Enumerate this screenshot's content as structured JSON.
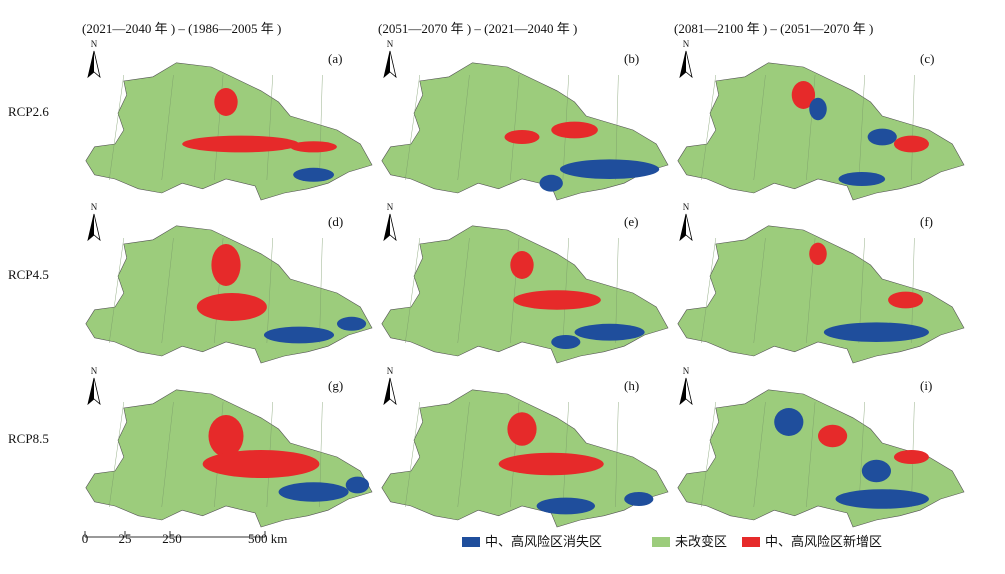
{
  "column_titles": [
    "(2021—2040 年 ) – (1986—2005 年 )",
    "(2051—2070 年 ) – (2021—2040 年 )",
    "(2081—2100 年 ) – (2051—2070 年 )"
  ],
  "row_labels": [
    "RCP2.6",
    "RCP4.5",
    "RCP8.5"
  ],
  "panels": [
    {
      "label": "(a)",
      "north": "N"
    },
    {
      "label": "(b)",
      "north": "N"
    },
    {
      "label": "(c)",
      "north": "N"
    },
    {
      "label": "(d)",
      "north": "N"
    },
    {
      "label": "(e)",
      "north": "N"
    },
    {
      "label": "(f)",
      "north": "N"
    },
    {
      "label": "(g)",
      "north": "N"
    },
    {
      "label": "(h)",
      "north": "N"
    },
    {
      "label": "(i)",
      "north": "N"
    }
  ],
  "scale_bar": {
    "labels": [
      "0",
      "25",
      "250",
      "500 km"
    ]
  },
  "legend": [
    {
      "label": "中、高风险区消失区",
      "color": "#1f4e9c"
    },
    {
      "label": "未改变区",
      "color": "#9ccc7c"
    },
    {
      "label": "中、高风险区新增区",
      "color": "#e62a2a"
    }
  ]
}
